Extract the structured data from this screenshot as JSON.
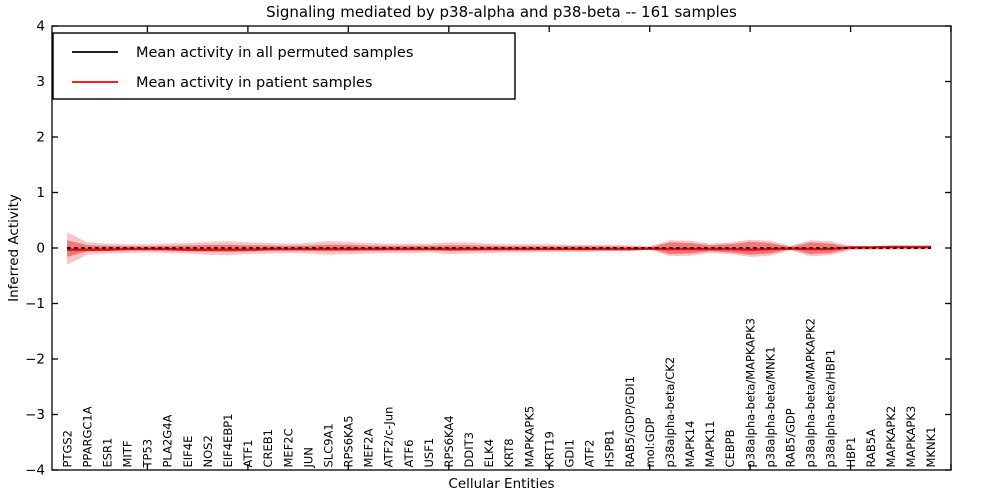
{
  "chart_data": {
    "type": "line",
    "title": "Signaling mediated by p38-alpha and p38-beta -- 161 samples",
    "xlabel": "Cellular Entities",
    "ylabel": "Inferred Activity",
    "ylim": [
      -4,
      4
    ],
    "xlim": [
      0.25,
      45
    ],
    "grid": false,
    "legend_position": "upper-left",
    "ytick_values": [
      4,
      3,
      2,
      1,
      0,
      -1,
      -2,
      -3,
      -4
    ],
    "ytick_labels": [
      "4",
      "3",
      "2",
      "1",
      "0",
      "−1",
      "−2",
      "−3",
      "−4"
    ],
    "xtick_positions": [
      5,
      10,
      15,
      20,
      25,
      30,
      35,
      40,
      45
    ],
    "categories": [
      "PTGS2",
      "PPARGC1A",
      "ESR1",
      "MITF",
      "TP53",
      "PLA2G4A",
      "EIF4E",
      "NOS2",
      "EIF4EBP1",
      "ATF1",
      "CREB1",
      "MEF2C",
      "JUN",
      "SLC9A1",
      "RPS6KA5",
      "MEF2A",
      "ATF2/c-Jun",
      "ATF6",
      "USF1",
      "RPS6KA4",
      "DDIT3",
      "ELK4",
      "KRT8",
      "MAPKAPK5",
      "KRT19",
      "GDI1",
      "ATF2",
      "HSPB1",
      "RAB5/GDP/GDI1",
      "mol:GDP",
      "p38alpha-beta/CK2",
      "MAPK14",
      "MAPK11",
      "CEBPB",
      "p38alpha-beta/MAPKAPK3",
      "p38alpha-beta/MNK1",
      "RAB5/GDP",
      "p38alpha-beta/MAPKAPK2",
      "p38alpha-beta/HBP1",
      "HBP1",
      "RAB5A",
      "MAPKAPK2",
      "MAPKAPK3",
      "MKNK1"
    ],
    "series": [
      {
        "name": "Mean activity in all permuted samples",
        "color": "#000000",
        "style": "dashed",
        "values": [
          0,
          0,
          0,
          0,
          0,
          0,
          0,
          0,
          0,
          0,
          0,
          0,
          0,
          0,
          0,
          0,
          0,
          0,
          0,
          0,
          0,
          0,
          0,
          0,
          0,
          0,
          0,
          0,
          0,
          0,
          0,
          0,
          0,
          0,
          0,
          0,
          0,
          0,
          0,
          0,
          0,
          0,
          0,
          0
        ]
      },
      {
        "name": "Mean activity in patient samples",
        "color": "#ff0000",
        "style": "solid",
        "values": [
          -0.03,
          -0.03,
          -0.03,
          -0.02,
          -0.02,
          -0.02,
          -0.03,
          -0.03,
          -0.03,
          -0.03,
          -0.02,
          -0.02,
          -0.02,
          -0.02,
          -0.02,
          -0.02,
          -0.02,
          -0.02,
          -0.02,
          -0.02,
          -0.02,
          -0.02,
          -0.02,
          -0.02,
          -0.02,
          -0.02,
          -0.02,
          -0.02,
          -0.02,
          -0.01,
          -0.02,
          -0.02,
          -0.02,
          -0.02,
          -0.03,
          -0.02,
          -0.01,
          -0.02,
          -0.02,
          0.01,
          0.01,
          0.02,
          0.02,
          0.02
        ]
      }
    ],
    "bands": [
      {
        "name": "permuted-activity-spread",
        "color": "#e41a1c",
        "opacity": 0.25,
        "upper": [
          0.28,
          0.1,
          0.08,
          0.07,
          0.07,
          0.08,
          0.09,
          0.11,
          0.12,
          0.1,
          0.09,
          0.08,
          0.09,
          0.12,
          0.11,
          0.09,
          0.08,
          0.08,
          0.08,
          0.1,
          0.1,
          0.08,
          0.07,
          0.07,
          0.07,
          0.06,
          0.06,
          0.06,
          0.05,
          0.03,
          0.14,
          0.13,
          0.08,
          0.1,
          0.15,
          0.13,
          0.04,
          0.14,
          0.12,
          0.04,
          0.03,
          0.03,
          0.03,
          0.03
        ],
        "lower": [
          -0.3,
          -0.12,
          -0.1,
          -0.09,
          -0.08,
          -0.09,
          -0.1,
          -0.12,
          -0.13,
          -0.11,
          -0.1,
          -0.09,
          -0.1,
          -0.12,
          -0.11,
          -0.1,
          -0.09,
          -0.09,
          -0.08,
          -0.11,
          -0.1,
          -0.09,
          -0.08,
          -0.08,
          -0.07,
          -0.07,
          -0.07,
          -0.06,
          -0.06,
          -0.03,
          -0.15,
          -0.14,
          -0.09,
          -0.11,
          -0.16,
          -0.14,
          -0.04,
          -0.15,
          -0.13,
          -0.04,
          -0.03,
          -0.03,
          -0.03,
          -0.03
        ]
      },
      {
        "name": "patient-activity-spread",
        "color": "#e41a1c",
        "opacity": 0.45,
        "upper": [
          0.14,
          0.05,
          0.04,
          0.035,
          0.03,
          0.04,
          0.045,
          0.055,
          0.06,
          0.05,
          0.045,
          0.04,
          0.045,
          0.06,
          0.055,
          0.045,
          0.04,
          0.04,
          0.04,
          0.05,
          0.05,
          0.04,
          0.035,
          0.035,
          0.035,
          0.03,
          0.03,
          0.03,
          0.025,
          0.015,
          0.1,
          0.09,
          0.05,
          0.07,
          0.11,
          0.09,
          0.02,
          0.1,
          0.08,
          0.015,
          0.01,
          0.01,
          0.01,
          0.01
        ],
        "lower": [
          -0.16,
          -0.06,
          -0.05,
          -0.045,
          -0.04,
          -0.05,
          -0.055,
          -0.065,
          -0.07,
          -0.06,
          -0.05,
          -0.05,
          -0.05,
          -0.06,
          -0.055,
          -0.05,
          -0.045,
          -0.045,
          -0.04,
          -0.055,
          -0.05,
          -0.045,
          -0.04,
          -0.04,
          -0.035,
          -0.035,
          -0.035,
          -0.03,
          -0.03,
          -0.015,
          -0.11,
          -0.1,
          -0.06,
          -0.08,
          -0.12,
          -0.1,
          -0.02,
          -0.11,
          -0.09,
          -0.015,
          -0.01,
          -0.01,
          -0.01,
          -0.01
        ]
      }
    ],
    "legend": {
      "entries": [
        {
          "label": "Mean activity in all permuted samples",
          "color": "#000000"
        },
        {
          "label": "Mean activity in patient samples",
          "color": "#ff0000"
        }
      ]
    }
  }
}
